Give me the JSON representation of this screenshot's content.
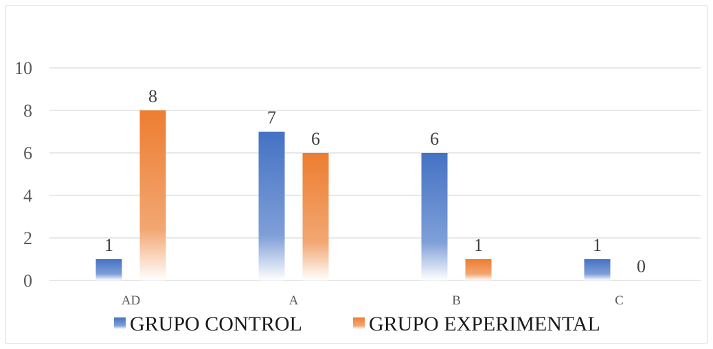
{
  "chart_data": {
    "type": "bar",
    "title": "",
    "xlabel": "",
    "ylabel": "",
    "categories": [
      "AD",
      "A",
      "B",
      "C"
    ],
    "series": [
      {
        "name": "GRUPO CONTROL",
        "values": [
          1,
          7,
          6,
          1
        ],
        "color": "#4472c4"
      },
      {
        "name": "GRUPO EXPERIMENTAL",
        "values": [
          8,
          6,
          1,
          0
        ],
        "color": "#ed7d31"
      }
    ],
    "ylim": [
      0,
      10
    ],
    "yticks": [
      0,
      2,
      4,
      6,
      8,
      10
    ],
    "grid": true,
    "legend_position": "bottom",
    "data_labels": true
  }
}
